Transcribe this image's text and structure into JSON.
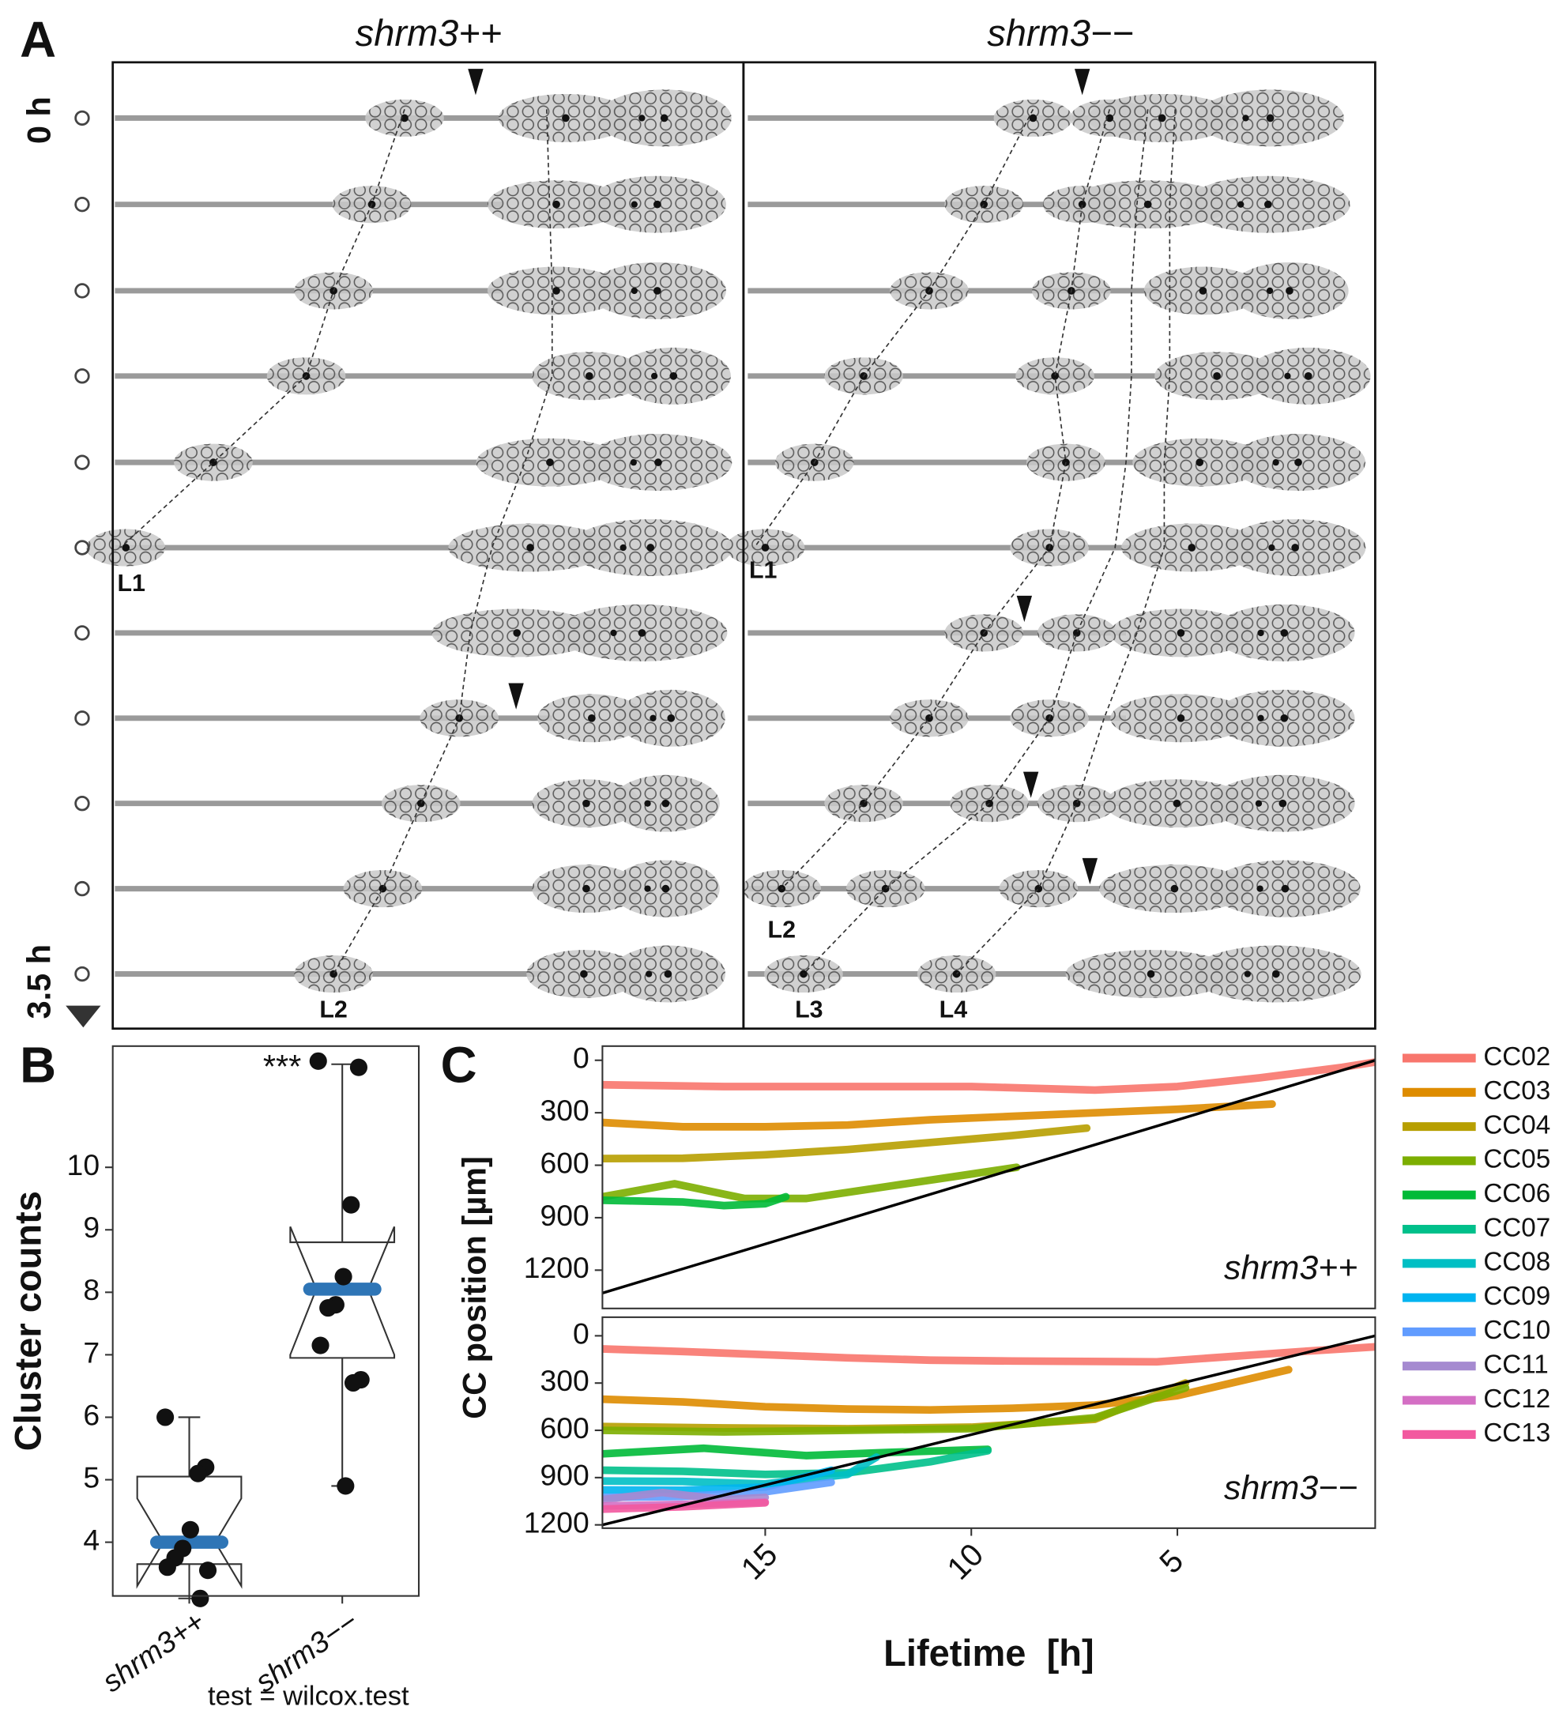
{
  "panel_a": {
    "panel_label": "A",
    "columns": [
      "shrm3++",
      "shrm3−−"
    ],
    "time_labels": [
      "0 h",
      "3.5 h"
    ],
    "lineage_labels": {
      "left": [
        "L1",
        "L2"
      ],
      "right": [
        "L1",
        "L2",
        "L3",
        "L4"
      ]
    }
  },
  "chart_data": [
    {
      "type": "boxplot",
      "panel_label": "B",
      "ylabel": "Cluster counts",
      "annotation": "***",
      "footnote": "test = wilcox.test",
      "categories": [
        "shrm3++",
        "shrm3−−"
      ],
      "ylim": [
        3.14,
        11.94
      ],
      "yticks": [
        4,
        5,
        6,
        7,
        8,
        9,
        10
      ],
      "median_color": "#2e75b6",
      "boxes": [
        {
          "whisker_low": 3.1,
          "q1": 3.65,
          "median": 4.0,
          "q3": 5.05,
          "whisker_high": 6.0,
          "notch_low": 3.3,
          "notch_high": 4.7,
          "points": [
            6.0,
            5.2,
            5.1,
            4.2,
            3.9,
            3.75,
            3.6,
            3.55,
            3.1
          ]
        },
        {
          "whisker_low": 4.9,
          "q1": 6.95,
          "median": 8.05,
          "q3": 8.8,
          "whisker_high": 11.65,
          "notch_low": 7.0,
          "notch_high": 9.05,
          "points": [
            11.7,
            11.6,
            9.4,
            8.25,
            7.8,
            7.75,
            7.15,
            6.6,
            6.55,
            4.9
          ]
        }
      ]
    },
    {
      "type": "line",
      "panel_label": "C",
      "ylabel": "CC position [µm]",
      "annotation": "shrm3++",
      "xlim": [
        18.95,
        0.2
      ],
      "ylim": [
        1419,
        -81
      ],
      "yticks": [
        0,
        300,
        600,
        900,
        1200
      ],
      "series": [
        {
          "color": "#f8766d",
          "x": [
            18.95,
            16,
            13,
            10,
            7,
            5,
            3,
            1,
            0.2
          ],
          "values": [
            140,
            150,
            150,
            150,
            170,
            150,
            100,
            40,
            10
          ]
        },
        {
          "color": "#de8c00",
          "x": [
            18.95,
            17,
            15,
            13,
            11,
            9,
            7,
            5,
            2.7
          ],
          "values": [
            356,
            380,
            380,
            370,
            340,
            320,
            300,
            280,
            250
          ]
        },
        {
          "color": "#b79f00",
          "x": [
            18.95,
            17,
            15,
            13,
            11,
            9,
            7.2
          ],
          "values": [
            562,
            560,
            540,
            510,
            470,
            430,
            388
          ]
        },
        {
          "color": "#7cae00",
          "x": [
            18.95,
            17.2,
            15.5,
            14,
            12,
            10,
            8.9
          ],
          "values": [
            780,
            706,
            790,
            790,
            720,
            650,
            612
          ]
        },
        {
          "color": "#00ba38",
          "x": [
            18.95,
            17,
            16,
            15,
            14.5
          ],
          "values": [
            800,
            810,
            831,
            820,
            780
          ]
        },
        {
          "color": "#000000",
          "x": [
            18.95,
            0.2
          ],
          "values": [
            1331,
            0
          ]
        }
      ]
    },
    {
      "type": "line",
      "xlabel": "Lifetime  [h]",
      "annotation": "shrm3−−",
      "xlim": [
        18.95,
        0.2
      ],
      "xticks": [
        15,
        10,
        5
      ],
      "ylim": [
        1221,
        -118
      ],
      "yticks": [
        0,
        300,
        600,
        900,
        1200
      ],
      "series": [
        {
          "name": "CC02",
          "color": "#f8766d",
          "x": [
            18.95,
            17,
            15,
            13,
            11,
            9,
            5.5,
            2,
            0.2
          ],
          "values": [
            83,
            100,
            120,
            140,
            155,
            160,
            165,
            100,
            70
          ]
        },
        {
          "name": "CC03",
          "color": "#de8c00",
          "x": [
            18.95,
            17,
            15,
            13,
            11,
            9,
            7,
            5,
            2.3
          ],
          "values": [
            402,
            420,
            450,
            465,
            470,
            460,
            440,
            380,
            215
          ]
        },
        {
          "name": "CC04",
          "color": "#b79f00",
          "x": [
            18.95,
            16,
            13,
            10,
            7,
            4.8
          ],
          "values": [
            576,
            585,
            590,
            580,
            530,
            300
          ]
        },
        {
          "name": "CC05",
          "color": "#7cae00",
          "x": [
            18.95,
            16,
            13,
            10,
            7,
            4.8
          ],
          "values": [
            600,
            610,
            600,
            590,
            520,
            330
          ]
        },
        {
          "name": "CC06",
          "color": "#00ba38",
          "x": [
            18.95,
            16.5,
            14,
            12,
            9.6
          ],
          "values": [
            749,
            714,
            760,
            740,
            721
          ]
        },
        {
          "name": "CC07",
          "color": "#00c08b",
          "x": [
            18.95,
            17,
            15,
            13,
            11,
            9.6
          ],
          "values": [
            853,
            860,
            880,
            870,
            800,
            730
          ]
        },
        {
          "name": "CC08",
          "color": "#00bfc4",
          "x": [
            18.95,
            17,
            15,
            13,
            12.3
          ],
          "values": [
            922,
            925,
            940,
            880,
            770
          ]
        },
        {
          "name": "CC09",
          "color": "#00b4f0",
          "x": [
            18.95,
            17,
            15,
            13.4
          ],
          "values": [
            978,
            980,
            960,
            853
          ]
        },
        {
          "name": "CC10",
          "color": "#619cff",
          "x": [
            18.95,
            17,
            15,
            13.4
          ],
          "values": [
            1026,
            1020,
            990,
            930
          ]
        },
        {
          "name": "CC11",
          "color": "#a58ad0",
          "x": [
            18.95,
            17.5,
            16,
            15
          ],
          "values": [
            1040,
            995,
            1040,
            1026
          ]
        },
        {
          "name": "CC12",
          "color": "#d46fc4",
          "x": [
            18.95,
            17,
            15
          ],
          "values": [
            1080,
            1070,
            1055
          ]
        },
        {
          "name": "CC13",
          "color": "#f2599f",
          "x": [
            18.95,
            17,
            15
          ],
          "values": [
            1100,
            1085,
            1060
          ]
        },
        {
          "color": "#000000",
          "x": [
            18.95,
            0.2
          ],
          "values": [
            1200,
            0
          ]
        }
      ]
    }
  ]
}
